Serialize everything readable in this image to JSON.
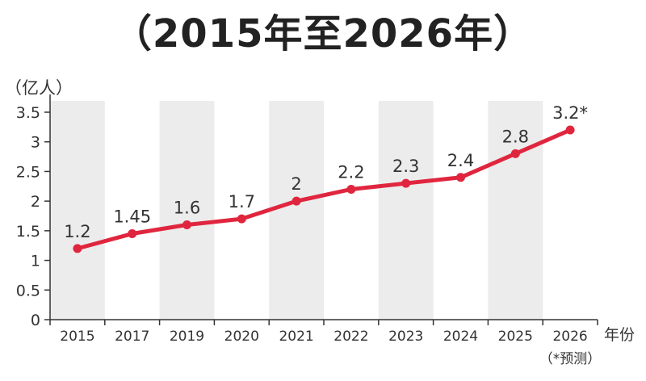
{
  "title": "（2015年至2026年）",
  "chart_data": {
    "type": "line",
    "title": "（2015年至2026年）",
    "ylabel": "（亿人）",
    "xlabel": "年份",
    "categories": [
      "2015",
      "2017",
      "2019",
      "2020",
      "2021",
      "2022",
      "2023",
      "2024",
      "2025",
      "2026"
    ],
    "values": [
      1.2,
      1.45,
      1.6,
      1.7,
      2,
      2.2,
      2.3,
      2.4,
      2.8,
      3.2
    ],
    "data_labels": [
      "1.2",
      "1.45",
      "1.6",
      "1.7",
      "2",
      "2.2",
      "2.3",
      "2.4",
      "2.8",
      "3.2*"
    ],
    "x_note": "（*预测）",
    "yticks": [
      "0",
      "0.5",
      "1",
      "1.5",
      "2",
      "2.5",
      "3",
      "3.5"
    ],
    "ylim": [
      0,
      3.5
    ],
    "grid": false,
    "line_color": "#e0263e",
    "band_color": "#ececec"
  }
}
